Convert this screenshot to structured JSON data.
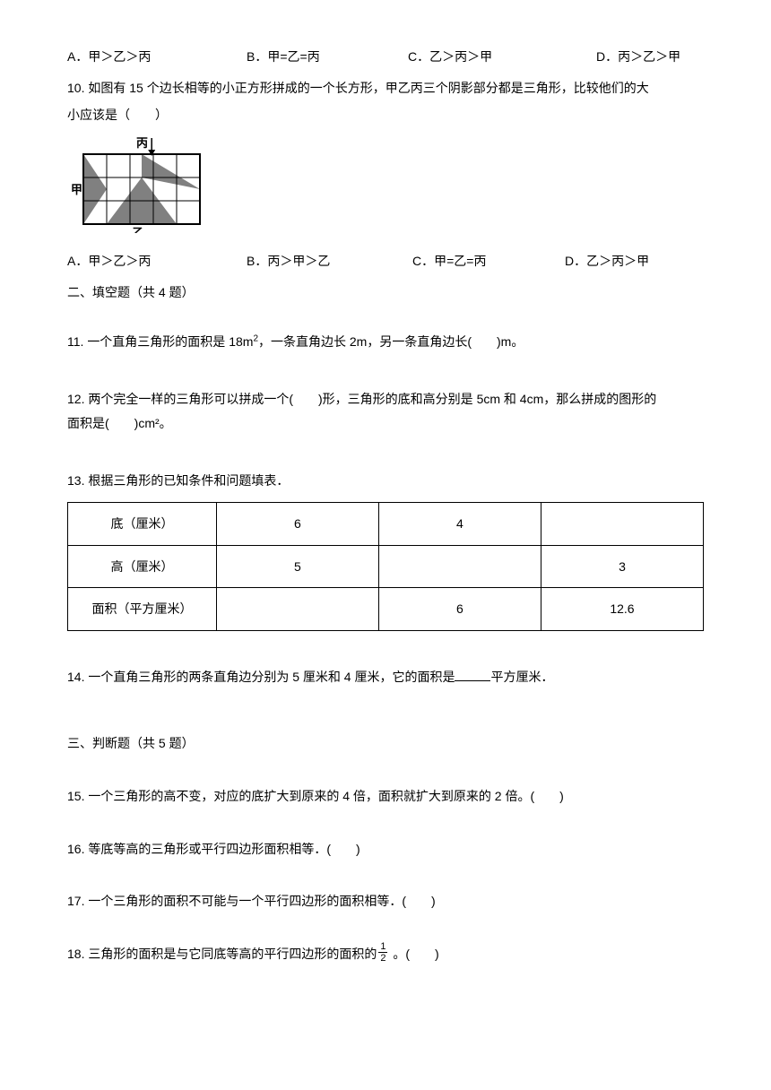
{
  "q9": {
    "optA": "A．甲＞乙＞丙",
    "optB": "B．甲=乙=丙",
    "optC": "C．乙＞丙＞甲",
    "optD": "D．丙＞乙＞甲"
  },
  "q10": {
    "line1": "10. 如图有 15 个边长相等的小正方形拼成的一个长方形，甲乙丙三个阴影部分都是三角形，比较他们的大",
    "line2": "小应该是（　　）",
    "label_jia": "甲",
    "label_yi": "乙",
    "label_bing": "丙",
    "optA": "A．甲＞乙＞丙",
    "optB": "B．丙＞甲＞乙",
    "optC": "C．甲=乙=丙",
    "optD": "D．乙＞丙＞甲"
  },
  "section2": {
    "title": "二、填空题（共 4 题）"
  },
  "q11": {
    "text_before_sup": "11. 一个直角三角形的面积是 18m",
    "sup": "2",
    "text_after_sup": "，一条直角边长 2m，另一条直角边长(　　)m。"
  },
  "q12": {
    "line1": "12. 两个完全一样的三角形可以拼成一个(　　)形，三角形的底和高分别是 5cm 和 4cm，那么拼成的图形的",
    "line2": "面积是(　　)cm²。"
  },
  "q13": {
    "intro": "13. 根据三角形的已知条件和问题填表．",
    "table": {
      "rows": [
        [
          "底（厘米）",
          "6",
          "4",
          ""
        ],
        [
          "高（厘米）",
          "5",
          "",
          "3"
        ],
        [
          "面积（平方厘米）",
          "",
          "6",
          "12.6"
        ]
      ]
    }
  },
  "q14": {
    "text_before": "14. 一个直角三角形的两条直角边分别为 5 厘米和 4 厘米，它的面积是",
    "text_after": "平方厘米．"
  },
  "section3": {
    "title": "三、判断题（共 5 题）"
  },
  "q15": {
    "text": "15. 一个三角形的高不变，对应的底扩大到原来的 4 倍，面积就扩大到原来的 2 倍。(　　)"
  },
  "q16": {
    "text": "16. 等底等高的三角形或平行四边形面积相等．(　　)"
  },
  "q17": {
    "text": "17. 一个三角形的面积不可能与一个平行四边形的面积相等．(　　)"
  },
  "q18": {
    "text_before": "18. 三角形的面积是与它同底等高的平行四边形的面积的",
    "frac_num": "1",
    "frac_den": "2",
    "text_after": " 。(　　)"
  },
  "diagram": {
    "cell": 26,
    "fill": "#808080",
    "stroke": "#000000",
    "bg": "#ffffff"
  }
}
